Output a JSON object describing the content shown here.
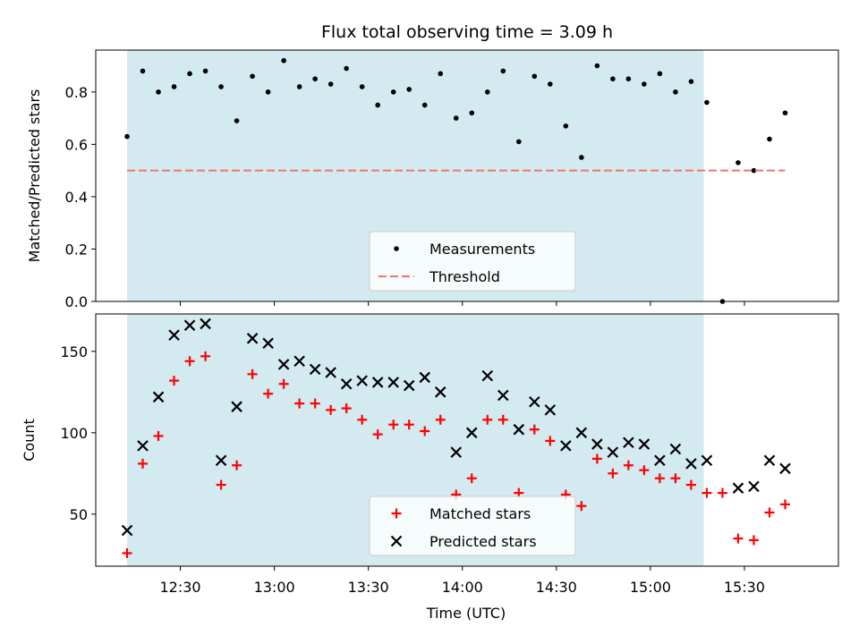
{
  "chart_data": {
    "type": "scatter",
    "title": "Flux total observing time = 3.09 h",
    "xlabel": "Time (UTC)",
    "x_tick_labels": [
      "12:30",
      "13:00",
      "13:30",
      "14:00",
      "14:30",
      "15:00",
      "15:30"
    ],
    "x_tick_values": [
      "12:30",
      "13:00",
      "13:30",
      "14:00",
      "14:30",
      "15:00",
      "15:30"
    ],
    "xlim": [
      "12:03",
      "16:00"
    ],
    "shaded_interval": {
      "start": "12:13",
      "end": "15:17",
      "color": "#d3eaf0"
    },
    "top_panel": {
      "ylabel": "Matched/Predicted stars",
      "ylim": [
        0,
        0.96
      ],
      "y_ticks": [
        0.0,
        0.2,
        0.4,
        0.6,
        0.8
      ],
      "y_tick_labels": [
        "0.0",
        "0.2",
        "0.4",
        "0.6",
        "0.8"
      ],
      "legend": {
        "placement": "lower center",
        "entries": [
          "Measurements",
          "Threshold"
        ]
      },
      "series": [
        {
          "name": "Measurements",
          "marker": "dot",
          "color": "#000000",
          "points": [
            [
              "12:13",
              0.63
            ],
            [
              "12:18",
              0.88
            ],
            [
              "12:23",
              0.8
            ],
            [
              "12:28",
              0.82
            ],
            [
              "12:33",
              0.87
            ],
            [
              "12:38",
              0.88
            ],
            [
              "12:43",
              0.82
            ],
            [
              "12:48",
              0.69
            ],
            [
              "12:53",
              0.86
            ],
            [
              "12:58",
              0.8
            ],
            [
              "13:03",
              0.92
            ],
            [
              "13:08",
              0.82
            ],
            [
              "13:13",
              0.85
            ],
            [
              "13:18",
              0.83
            ],
            [
              "13:23",
              0.89
            ],
            [
              "13:28",
              0.82
            ],
            [
              "13:33",
              0.75
            ],
            [
              "13:38",
              0.8
            ],
            [
              "13:43",
              0.81
            ],
            [
              "13:48",
              0.75
            ],
            [
              "13:53",
              0.87
            ],
            [
              "13:58",
              0.7
            ],
            [
              "14:03",
              0.72
            ],
            [
              "14:08",
              0.8
            ],
            [
              "14:13",
              0.88
            ],
            [
              "14:18",
              0.61
            ],
            [
              "14:23",
              0.86
            ],
            [
              "14:28",
              0.83
            ],
            [
              "14:33",
              0.67
            ],
            [
              "14:38",
              0.55
            ],
            [
              "14:43",
              0.9
            ],
            [
              "14:48",
              0.85
            ],
            [
              "14:53",
              0.85
            ],
            [
              "14:58",
              0.83
            ],
            [
              "15:03",
              0.87
            ],
            [
              "15:08",
              0.8
            ],
            [
              "15:13",
              0.84
            ],
            [
              "15:18",
              0.76
            ],
            [
              "15:23",
              0.0
            ],
            [
              "15:28",
              0.53
            ],
            [
              "15:33",
              0.5
            ],
            [
              "15:38",
              0.62
            ],
            [
              "15:43",
              0.72
            ]
          ]
        },
        {
          "name": "Threshold",
          "style": "dashed",
          "color": "#f07474",
          "value": 0.5,
          "x_range": [
            "12:13",
            "15:43"
          ]
        }
      ]
    },
    "bottom_panel": {
      "ylabel": "Count",
      "ylim": [
        18,
        173
      ],
      "y_ticks": [
        50,
        100,
        150
      ],
      "y_tick_labels": [
        "50",
        "100",
        "150"
      ],
      "legend": {
        "placement": "lower center",
        "entries": [
          "Matched stars",
          "Predicted stars"
        ]
      },
      "series": [
        {
          "name": "Matched stars",
          "marker": "plus",
          "color": "#ff0000",
          "points": [
            [
              "12:13",
              26
            ],
            [
              "12:18",
              81
            ],
            [
              "12:23",
              98
            ],
            [
              "12:28",
              132
            ],
            [
              "12:33",
              144
            ],
            [
              "12:38",
              147
            ],
            [
              "12:43",
              68
            ],
            [
              "12:48",
              80
            ],
            [
              "12:53",
              136
            ],
            [
              "12:58",
              124
            ],
            [
              "13:03",
              130
            ],
            [
              "13:08",
              118
            ],
            [
              "13:13",
              118
            ],
            [
              "13:18",
              114
            ],
            [
              "13:23",
              115
            ],
            [
              "13:28",
              108
            ],
            [
              "13:33",
              99
            ],
            [
              "13:38",
              105
            ],
            [
              "13:43",
              105
            ],
            [
              "13:48",
              101
            ],
            [
              "13:53",
              108
            ],
            [
              "13:58",
              62
            ],
            [
              "14:03",
              72
            ],
            [
              "14:08",
              108
            ],
            [
              "14:13",
              108
            ],
            [
              "14:18",
              63
            ],
            [
              "14:23",
              102
            ],
            [
              "14:28",
              95
            ],
            [
              "14:33",
              62
            ],
            [
              "14:38",
              55
            ],
            [
              "14:43",
              84
            ],
            [
              "14:48",
              75
            ],
            [
              "14:53",
              80
            ],
            [
              "14:58",
              77
            ],
            [
              "15:03",
              72
            ],
            [
              "15:08",
              72
            ],
            [
              "15:13",
              68
            ],
            [
              "15:18",
              63
            ],
            [
              "15:23",
              63
            ],
            [
              "15:28",
              35
            ],
            [
              "15:33",
              34
            ],
            [
              "15:38",
              51
            ],
            [
              "15:43",
              56
            ]
          ]
        },
        {
          "name": "Predicted stars",
          "marker": "x",
          "color": "#000000",
          "points": [
            [
              "12:13",
              40
            ],
            [
              "12:18",
              92
            ],
            [
              "12:23",
              122
            ],
            [
              "12:28",
              160
            ],
            [
              "12:33",
              166
            ],
            [
              "12:38",
              167
            ],
            [
              "12:43",
              83
            ],
            [
              "12:48",
              116
            ],
            [
              "12:53",
              158
            ],
            [
              "12:58",
              155
            ],
            [
              "13:03",
              142
            ],
            [
              "13:08",
              144
            ],
            [
              "13:13",
              139
            ],
            [
              "13:18",
              137
            ],
            [
              "13:23",
              130
            ],
            [
              "13:28",
              132
            ],
            [
              "13:33",
              131
            ],
            [
              "13:38",
              131
            ],
            [
              "13:43",
              129
            ],
            [
              "13:48",
              134
            ],
            [
              "13:53",
              125
            ],
            [
              "13:58",
              88
            ],
            [
              "14:03",
              100
            ],
            [
              "14:08",
              135
            ],
            [
              "14:13",
              123
            ],
            [
              "14:18",
              102
            ],
            [
              "14:23",
              119
            ],
            [
              "14:28",
              114
            ],
            [
              "14:33",
              92
            ],
            [
              "14:38",
              100
            ],
            [
              "14:43",
              93
            ],
            [
              "14:48",
              88
            ],
            [
              "14:53",
              94
            ],
            [
              "14:58",
              93
            ],
            [
              "15:03",
              83
            ],
            [
              "15:08",
              90
            ],
            [
              "15:13",
              81
            ],
            [
              "15:18",
              83
            ],
            [
              "15:28",
              66
            ],
            [
              "15:33",
              67
            ],
            [
              "15:38",
              83
            ],
            [
              "15:43",
              78
            ]
          ]
        }
      ]
    }
  }
}
